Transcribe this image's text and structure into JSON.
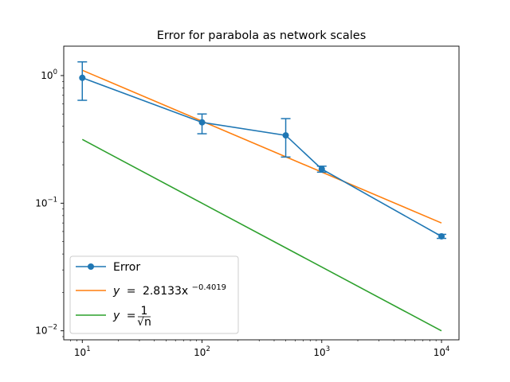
{
  "chart_data": {
    "type": "line",
    "title": "Error for parabola as network scales",
    "xlabel": "",
    "ylabel": "",
    "xscale": "log",
    "yscale": "log",
    "xlim": [
      7,
      14000
    ],
    "ylim": [
      0.0085,
      1.7
    ],
    "x_ticks": [
      {
        "value": 10,
        "base": "10",
        "exp": "1"
      },
      {
        "value": 100,
        "base": "10",
        "exp": "2"
      },
      {
        "value": 1000,
        "base": "10",
        "exp": "3"
      },
      {
        "value": 10000,
        "base": "10",
        "exp": "4"
      }
    ],
    "y_ticks": [
      {
        "value": 0.01,
        "base": "10",
        "exp": "−2"
      },
      {
        "value": 0.1,
        "base": "10",
        "exp": "−1"
      },
      {
        "value": 1,
        "base": "10",
        "exp": "0"
      }
    ],
    "grid": false,
    "legend_position": "lower-left",
    "series": [
      {
        "name": "Error",
        "color": "#1f77b4",
        "marker": "circle",
        "x": [
          10,
          100,
          500,
          1000,
          10000
        ],
        "y": [
          0.96,
          0.43,
          0.34,
          0.185,
          0.055
        ],
        "yerr_low": [
          0.64,
          0.35,
          0.23,
          0.175,
          0.053
        ],
        "yerr_high": [
          1.28,
          0.5,
          0.46,
          0.195,
          0.057
        ]
      },
      {
        "name": "y = 2.8133x^−0.4019",
        "legend_parts": {
          "lhs": "y",
          "eq": "=",
          "coef": "2.8133x",
          "exp": "−0.4019"
        },
        "color": "#ff7f0e",
        "x": [
          10,
          10000
        ],
        "y": [
          1.1,
          0.07
        ]
      },
      {
        "name": "y = 1/√n",
        "legend_parts": {
          "lhs": "y",
          "eq": "=",
          "num": "1",
          "den": "√n"
        },
        "color": "#2ca02c",
        "x": [
          10,
          10000
        ],
        "y": [
          0.316,
          0.01
        ]
      }
    ]
  }
}
